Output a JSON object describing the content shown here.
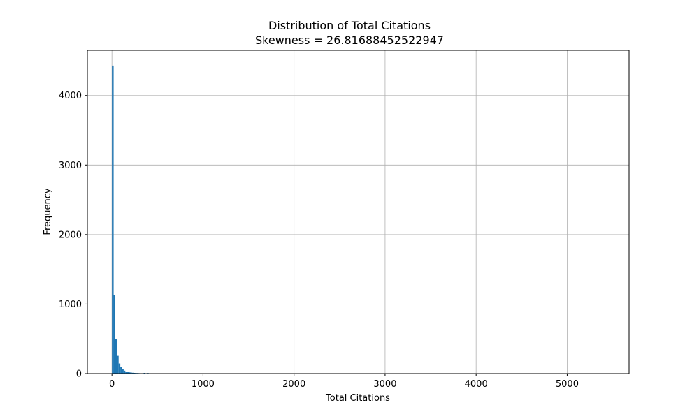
{
  "chart_data": {
    "type": "bar",
    "title": "Distribution of Total Citations",
    "subtitle": "Skewness = 26.81688452522947",
    "xlabel": "Total Citations",
    "ylabel": "Frequency",
    "xlim": [
      -270,
      5680
    ],
    "ylim": [
      0,
      4650
    ],
    "xticks": [
      0,
      1000,
      2000,
      3000,
      4000,
      5000
    ],
    "yticks": [
      0,
      1000,
      2000,
      3000,
      4000
    ],
    "grid": true,
    "legend": "none",
    "bar_color": "#1f77b4",
    "bin_width": 18.33,
    "bins": [
      {
        "x": 0,
        "count": 4430
      },
      {
        "x": 18.33,
        "count": 1125
      },
      {
        "x": 36.67,
        "count": 495
      },
      {
        "x": 55,
        "count": 255
      },
      {
        "x": 73.33,
        "count": 145
      },
      {
        "x": 91.67,
        "count": 95
      },
      {
        "x": 110,
        "count": 60
      },
      {
        "x": 128.33,
        "count": 42
      },
      {
        "x": 146.67,
        "count": 30
      },
      {
        "x": 165,
        "count": 25
      },
      {
        "x": 183.33,
        "count": 18
      },
      {
        "x": 201.67,
        "count": 15
      },
      {
        "x": 220,
        "count": 12
      },
      {
        "x": 238.33,
        "count": 10
      },
      {
        "x": 256.67,
        "count": 8
      },
      {
        "x": 275,
        "count": 8
      },
      {
        "x": 293.33,
        "count": 6
      },
      {
        "x": 311.67,
        "count": 5
      },
      {
        "x": 330,
        "count": 4
      },
      {
        "x": 348.33,
        "count": 10
      },
      {
        "x": 366.67,
        "count": 4
      },
      {
        "x": 385,
        "count": 8
      },
      {
        "x": 403.33,
        "count": 3
      },
      {
        "x": 421.67,
        "count": 2
      },
      {
        "x": 440,
        "count": 2
      }
    ]
  }
}
